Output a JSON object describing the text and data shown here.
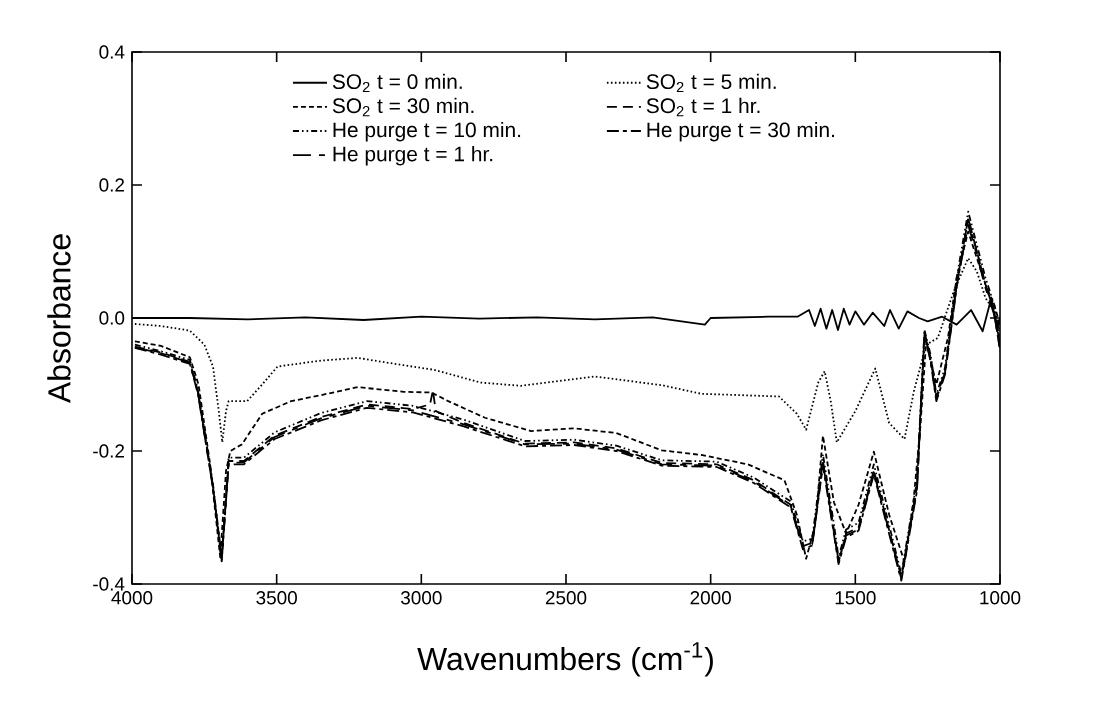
{
  "chart_data": {
    "type": "line",
    "xlabel": "Wavenumbers (cm$^{-1}$)",
    "ylabel": "Absorbance",
    "xlim": [
      4000,
      1000
    ],
    "ylim": [
      -0.4,
      0.4
    ],
    "xticks": [
      4000,
      3500,
      3000,
      2500,
      2000,
      1500,
      1000
    ],
    "yticks": [
      -0.4,
      -0.2,
      {
        "value": 0,
        "label": "0.0"
      },
      0.2,
      0.4
    ],
    "legend": "top",
    "series": [
      {
        "name": "SO$_{2}$ t = 0 min.",
        "color": "#000000",
        "line_style": "solid",
        "x": [
          4000,
          3800,
          3600,
          3400,
          3200,
          3000,
          2800,
          2600,
          2400,
          2200,
          2020,
          2000,
          1800,
          1700,
          1660,
          1640,
          1620,
          1600,
          1580,
          1560,
          1540,
          1520,
          1500,
          1470,
          1440,
          1400,
          1380,
          1350,
          1320,
          1280,
          1250,
          1200,
          1150,
          1100,
          1060,
          1030,
          1010,
          1000
        ],
        "values": [
          0,
          0,
          -0.002,
          0.001,
          -0.003,
          0.002,
          -0.001,
          0.001,
          -0.002,
          0.001,
          -0.01,
          0,
          0.002,
          0.002,
          0.012,
          -0.012,
          0.014,
          -0.016,
          0.012,
          -0.018,
          0.014,
          -0.01,
          0.01,
          -0.01,
          0.008,
          -0.012,
          0.012,
          -0.016,
          0.01,
          0,
          -0.005,
          0.002,
          -0.01,
          0.012,
          -0.02,
          0.03,
          -0.02,
          0
        ]
      },
      {
        "name": "SO$_{2}$ t = 5 min.",
        "color": "#000000",
        "line_style": "dotted",
        "x": [
          3990,
          3900,
          3800,
          3750,
          3720,
          3700,
          3688,
          3675,
          3666,
          3602,
          3550,
          3497,
          3347,
          3220,
          3061,
          2955,
          2796,
          2656,
          2401,
          2169,
          2032,
          1764,
          1702,
          1670,
          1628,
          1606,
          1585,
          1564,
          1500,
          1431,
          1383,
          1330,
          1298,
          1255,
          1215,
          1160,
          1110,
          1080,
          1050,
          1020,
          1000
        ],
        "values": [
          -0.009,
          -0.012,
          -0.019,
          -0.04,
          -0.073,
          -0.14,
          -0.187,
          -0.14,
          -0.125,
          -0.125,
          -0.1,
          -0.073,
          -0.064,
          -0.06,
          -0.071,
          -0.078,
          -0.097,
          -0.102,
          -0.088,
          -0.101,
          -0.114,
          -0.118,
          -0.144,
          -0.168,
          -0.097,
          -0.08,
          -0.125,
          -0.187,
          -0.14,
          -0.076,
          -0.158,
          -0.182,
          -0.111,
          -0.04,
          -0.03,
          0.04,
          0.09,
          0.07,
          0.03,
          0.01,
          -0.02
        ]
      },
      {
        "name": "SO$_{2}$ t = 30 min.",
        "color": "#000000",
        "line_style": "dashed",
        "x": [
          3990,
          3900,
          3800,
          3770,
          3730,
          3695,
          3675,
          3660,
          3620,
          3550,
          3450,
          3347,
          3220,
          3061,
          2965,
          2907,
          2780,
          2621,
          2472,
          2326,
          2169,
          2032,
          1872,
          1745,
          1702,
          1670,
          1638,
          1612,
          1574,
          1532,
          1489,
          1436,
          1383,
          1330,
          1300,
          1276,
          1255,
          1220,
          1180,
          1150,
          1110,
          1080,
          1050,
          1020,
          1000
        ],
        "values": [
          -0.035,
          -0.042,
          -0.059,
          -0.1,
          -0.22,
          -0.36,
          -0.23,
          -0.2,
          -0.19,
          -0.144,
          -0.125,
          -0.116,
          -0.104,
          -0.111,
          -0.112,
          -0.125,
          -0.15,
          -0.17,
          -0.166,
          -0.173,
          -0.199,
          -0.206,
          -0.22,
          -0.244,
          -0.296,
          -0.362,
          -0.31,
          -0.177,
          -0.277,
          -0.324,
          -0.281,
          -0.201,
          -0.296,
          -0.367,
          -0.28,
          -0.168,
          -0.035,
          -0.1,
          -0.03,
          0.06,
          0.13,
          0.09,
          0.05,
          0.02,
          -0.01
        ]
      },
      {
        "name": "SO$_{2}$ t = 1 hr.",
        "color": "#000000",
        "line_style": "dashed",
        "x": [
          3990,
          3900,
          3800,
          3772,
          3720,
          3690,
          3666,
          3613,
          3507,
          3347,
          3188,
          3029,
          2970,
          2960,
          2950,
          2853,
          2642,
          2472,
          2326,
          2169,
          1979,
          1851,
          1723,
          1681,
          1649,
          1612,
          1574,
          1558,
          1532,
          1489,
          1436,
          1383,
          1341,
          1287,
          1261,
          1240,
          1220,
          1190,
          1150,
          1110,
          1080,
          1050,
          1020,
          1000
        ],
        "values": [
          -0.043,
          -0.052,
          -0.066,
          -0.111,
          -0.253,
          -0.364,
          -0.215,
          -0.215,
          -0.177,
          -0.149,
          -0.13,
          -0.137,
          -0.13,
          -0.109,
          -0.14,
          -0.158,
          -0.189,
          -0.187,
          -0.196,
          -0.218,
          -0.22,
          -0.244,
          -0.281,
          -0.343,
          -0.338,
          -0.215,
          -0.319,
          -0.367,
          -0.324,
          -0.315,
          -0.229,
          -0.319,
          -0.39,
          -0.253,
          -0.021,
          -0.06,
          -0.12,
          -0.08,
          0.05,
          0.15,
          0.1,
          0.05,
          0.01,
          -0.04
        ]
      },
      {
        "name": "He purge t = 10 min.",
        "color": "#000000",
        "line_style": "dashed",
        "x": [
          3990,
          3900,
          3800,
          3772,
          3720,
          3690,
          3666,
          3613,
          3507,
          3347,
          3188,
          3029,
          2853,
          2642,
          2472,
          2326,
          2169,
          1979,
          1851,
          1723,
          1681,
          1649,
          1612,
          1574,
          1558,
          1532,
          1489,
          1436,
          1383,
          1341,
          1287,
          1261,
          1240,
          1220,
          1190,
          1150,
          1110,
          1080,
          1050,
          1020,
          1000
        ],
        "values": [
          -0.04,
          -0.05,
          -0.063,
          -0.108,
          -0.25,
          -0.36,
          -0.21,
          -0.21,
          -0.172,
          -0.143,
          -0.125,
          -0.132,
          -0.153,
          -0.185,
          -0.183,
          -0.192,
          -0.214,
          -0.216,
          -0.24,
          -0.276,
          -0.336,
          -0.332,
          -0.205,
          -0.31,
          -0.36,
          -0.318,
          -0.308,
          -0.22,
          -0.312,
          -0.385,
          -0.245,
          -0.018,
          -0.055,
          -0.115,
          -0.075,
          0.06,
          0.16,
          0.11,
          0.06,
          0.02,
          -0.03
        ]
      },
      {
        "name": "He purge t = 30 min.",
        "color": "#000000",
        "line_style": "dashed",
        "x": [
          3990,
          3900,
          3800,
          3772,
          3720,
          3690,
          3666,
          3613,
          3507,
          3347,
          3188,
          3029,
          2853,
          2642,
          2472,
          2326,
          2169,
          1979,
          1851,
          1723,
          1681,
          1649,
          1612,
          1574,
          1558,
          1532,
          1489,
          1436,
          1383,
          1341,
          1287,
          1261,
          1240,
          1220,
          1190,
          1150,
          1110,
          1080,
          1050,
          1020,
          1000
        ],
        "values": [
          -0.045,
          -0.055,
          -0.069,
          -0.114,
          -0.256,
          -0.366,
          -0.22,
          -0.22,
          -0.182,
          -0.154,
          -0.135,
          -0.142,
          -0.163,
          -0.193,
          -0.191,
          -0.2,
          -0.222,
          -0.224,
          -0.248,
          -0.285,
          -0.348,
          -0.342,
          -0.222,
          -0.325,
          -0.37,
          -0.33,
          -0.32,
          -0.235,
          -0.325,
          -0.395,
          -0.26,
          -0.025,
          -0.065,
          -0.125,
          -0.085,
          0.045,
          0.15,
          0.1,
          0.05,
          0.01,
          -0.05
        ]
      },
      {
        "name": "He purge t = 1 hr.",
        "color": "#000000",
        "line_style": "dashed",
        "x": [
          3990,
          3900,
          3800,
          3772,
          3720,
          3690,
          3666,
          3613,
          3507,
          3347,
          3188,
          3029,
          2853,
          2642,
          2472,
          2326,
          2169,
          1979,
          1851,
          1723,
          1681,
          1649,
          1612,
          1574,
          1558,
          1532,
          1489,
          1436,
          1383,
          1341,
          1287,
          1261,
          1240,
          1220,
          1190,
          1150,
          1110,
          1080,
          1050,
          1020,
          1000
        ],
        "values": [
          -0.044,
          -0.053,
          -0.067,
          -0.112,
          -0.254,
          -0.362,
          -0.218,
          -0.217,
          -0.179,
          -0.151,
          -0.132,
          -0.139,
          -0.16,
          -0.19,
          -0.189,
          -0.198,
          -0.22,
          -0.222,
          -0.246,
          -0.283,
          -0.345,
          -0.34,
          -0.218,
          -0.322,
          -0.365,
          -0.327,
          -0.318,
          -0.232,
          -0.322,
          -0.392,
          -0.256,
          -0.023,
          -0.062,
          -0.122,
          -0.082,
          0.048,
          0.14,
          0.095,
          0.045,
          0.005,
          -0.045
        ]
      }
    ]
  }
}
